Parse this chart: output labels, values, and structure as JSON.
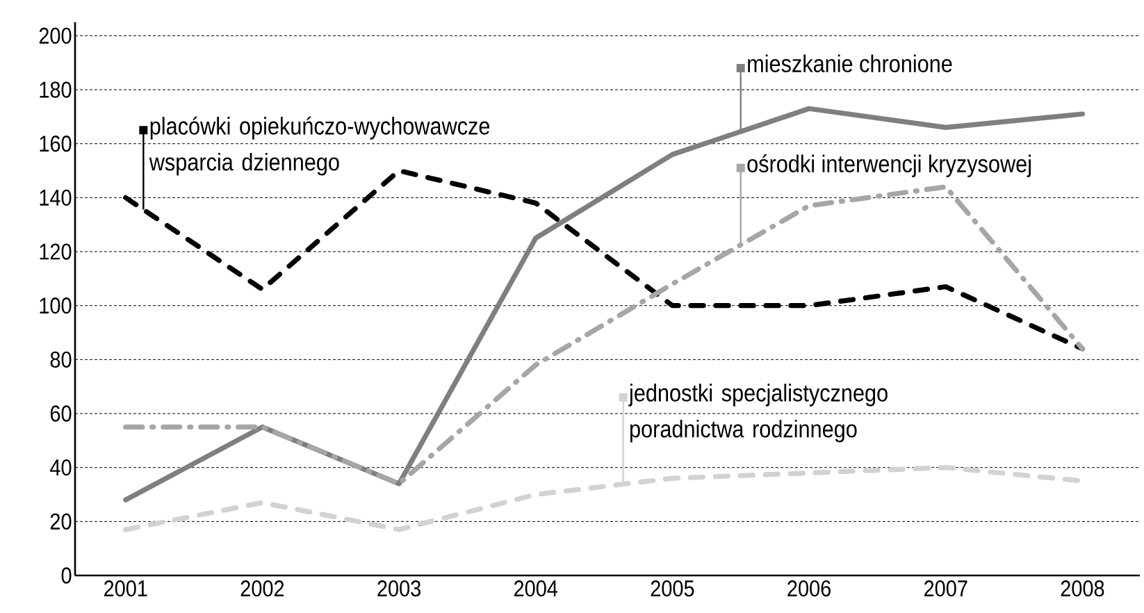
{
  "chart_data": {
    "type": "line",
    "categories": [
      "2001",
      "2002",
      "2003",
      "2004",
      "2005",
      "2006",
      "2007",
      "2008"
    ],
    "series": [
      {
        "name": "mieszkanie chronione",
        "color": "#7f7f80",
        "line_style": "solid",
        "values": [
          28,
          55,
          34,
          125,
          156,
          173,
          166,
          171
        ]
      },
      {
        "name": "placówki opiekuńczo-wychowawcze wsparcia dziennego",
        "color": "#000000",
        "line_style": "dashed",
        "values": [
          140,
          106,
          150,
          138,
          100,
          100,
          107,
          84
        ]
      },
      {
        "name": "ośrodki interwencji kryzysowej",
        "color": "#a6a6a6",
        "line_style": "dashdot",
        "values": [
          55,
          55,
          34,
          78,
          108,
          137,
          144,
          84
        ]
      },
      {
        "name": "jednostki specjalistycznego poradnictwa rodzinnego",
        "color": "#d2d2d2",
        "line_style": "dashed",
        "values": [
          17,
          27,
          17,
          30,
          36,
          38,
          40,
          35
        ]
      }
    ],
    "ylim": [
      0,
      205
    ],
    "yticks": [
      0,
      20,
      40,
      60,
      80,
      100,
      120,
      140,
      160,
      180,
      200
    ],
    "grid": "y",
    "legend": "top",
    "marker": "none"
  }
}
